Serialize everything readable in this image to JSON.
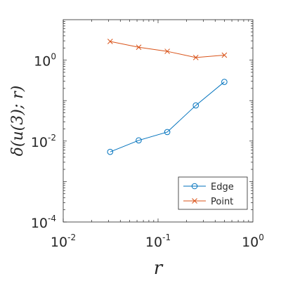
{
  "chart_data": {
    "type": "line",
    "xscale": "log",
    "yscale": "log",
    "xlim": [
      0.01,
      1
    ],
    "ylim": [
      0.0001,
      10
    ],
    "xticks": [
      {
        "value": 0.01,
        "base": "10",
        "exp": "-2"
      },
      {
        "value": 0.1,
        "base": "10",
        "exp": "-1"
      },
      {
        "value": 1,
        "base": "10",
        "exp": "0"
      }
    ],
    "yticks": [
      {
        "value": 0.0001,
        "base": "10",
        "exp": "-4"
      },
      {
        "value": 0.01,
        "base": "10",
        "exp": "-2"
      },
      {
        "value": 1,
        "base": "10",
        "exp": "0"
      }
    ],
    "xlabel": "r",
    "ylabel": "δ(u(3); r)",
    "legend_position": "bottom-right",
    "series": [
      {
        "name": "Edge",
        "color": "#0072BD",
        "marker": "circle",
        "x": [
          0.03125,
          0.0625,
          0.125,
          0.25,
          0.5
        ],
        "y": [
          0.0054,
          0.0104,
          0.0167,
          0.076,
          0.29
        ]
      },
      {
        "name": "Point",
        "color": "#D95319",
        "marker": "x",
        "x": [
          0.03125,
          0.0625,
          0.125,
          0.25,
          0.5
        ],
        "y": [
          2.9,
          2.08,
          1.65,
          1.16,
          1.33
        ]
      }
    ]
  }
}
